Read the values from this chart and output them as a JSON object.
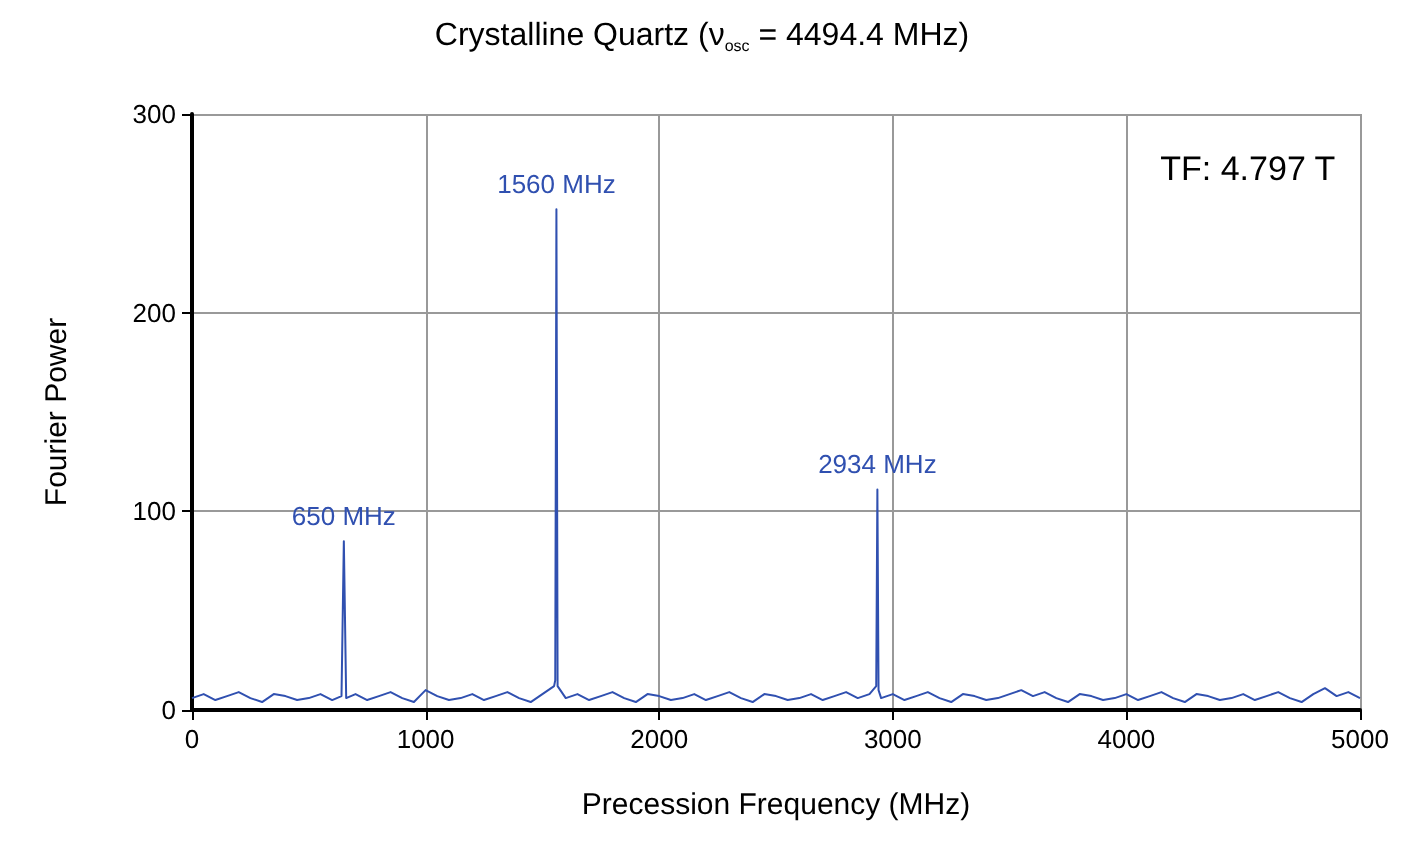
{
  "chart_data": {
    "type": "line",
    "title": "Crystalline Quartz (ν$_{osc}$ = 4494.4 MHz)",
    "xlabel": "Precession Frequency (MHz)",
    "ylabel": "Fourier Power",
    "xlim": [
      0,
      5000
    ],
    "xticks": [
      0,
      1000,
      2000,
      3000,
      4000,
      5000
    ],
    "ylim": [
      0,
      300
    ],
    "yticks": [
      0,
      100,
      200,
      300
    ],
    "grid": true,
    "marker": "none",
    "line_style": "solid",
    "series": [
      {
        "color": "#3050b0",
        "x": [
          0,
          50,
          100,
          150,
          200,
          250,
          300,
          350,
          400,
          450,
          500,
          550,
          600,
          640,
          650,
          660,
          700,
          750,
          800,
          850,
          900,
          950,
          1000,
          1050,
          1100,
          1150,
          1200,
          1250,
          1300,
          1350,
          1400,
          1450,
          1500,
          1550,
          1555,
          1560,
          1565,
          1600,
          1650,
          1700,
          1750,
          1800,
          1850,
          1900,
          1950,
          2000,
          2050,
          2100,
          2150,
          2200,
          2250,
          2300,
          2350,
          2400,
          2450,
          2500,
          2550,
          2600,
          2650,
          2700,
          2750,
          2800,
          2850,
          2900,
          2929,
          2934,
          2939,
          2950,
          3000,
          3050,
          3100,
          3150,
          3200,
          3250,
          3300,
          3350,
          3400,
          3450,
          3500,
          3550,
          3600,
          3650,
          3700,
          3750,
          3800,
          3850,
          3900,
          3950,
          4000,
          4050,
          4100,
          4150,
          4200,
          4250,
          4300,
          4350,
          4400,
          4450,
          4500,
          4550,
          4600,
          4650,
          4700,
          4750,
          4800,
          4850,
          4900,
          4950,
          5000
        ],
        "values": [
          6,
          8,
          5,
          7,
          9,
          6,
          4,
          8,
          7,
          5,
          6,
          8,
          5,
          7,
          85,
          6,
          8,
          5,
          7,
          9,
          6,
          4,
          10,
          7,
          5,
          6,
          8,
          5,
          7,
          9,
          6,
          4,
          8,
          12,
          15,
          252,
          12,
          6,
          8,
          5,
          7,
          9,
          6,
          4,
          8,
          7,
          5,
          6,
          8,
          5,
          7,
          9,
          6,
          4,
          8,
          7,
          5,
          6,
          8,
          5,
          7,
          9,
          6,
          8,
          12,
          111,
          10,
          6,
          8,
          5,
          7,
          9,
          6,
          4,
          8,
          7,
          5,
          6,
          8,
          10,
          7,
          9,
          6,
          4,
          8,
          7,
          5,
          6,
          8,
          5,
          7,
          9,
          6,
          4,
          8,
          7,
          5,
          6,
          8,
          5,
          7,
          9,
          6,
          4,
          8,
          11,
          7,
          9,
          6
        ]
      }
    ],
    "annotations": [
      {
        "text": "650 MHz",
        "x": 650,
        "y": 85
      },
      {
        "text": "1560 MHz",
        "x": 1560,
        "y": 252
      },
      {
        "text": "2934 MHz",
        "x": 2934,
        "y": 111
      },
      "TF: 4.797 T"
    ]
  }
}
